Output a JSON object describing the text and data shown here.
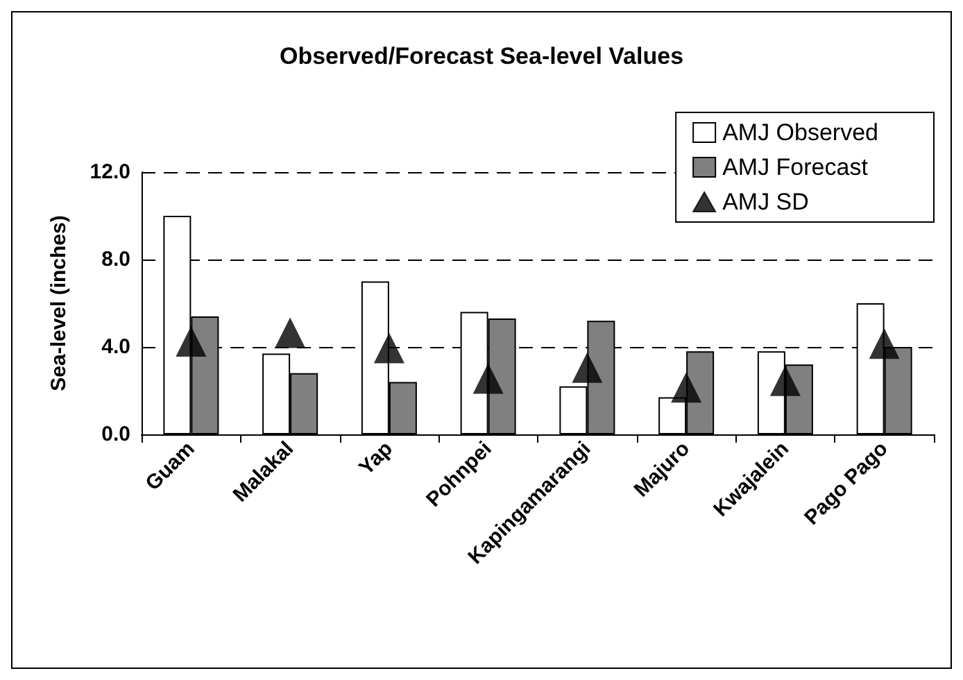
{
  "chart_data": {
    "type": "bar",
    "title": "Observed/Forecast Sea-level Values",
    "ylabel": "Sea-level (inches)",
    "categories": [
      "Guam",
      "Malakal",
      "Yap",
      "Pohnpei",
      "Kapingamarangi",
      "Majuro",
      "Kwajalein",
      "Pago Pago"
    ],
    "series": [
      {
        "name": "AMJ Observed",
        "color": "#ffffff",
        "values": [
          10.0,
          3.7,
          7.0,
          5.6,
          2.2,
          1.7,
          3.8,
          6.0
        ]
      },
      {
        "name": "AMJ Forecast",
        "color": "#808080",
        "values": [
          5.4,
          2.8,
          2.4,
          5.3,
          5.2,
          3.8,
          3.2,
          4.0
        ]
      },
      {
        "name": "AMJ SD",
        "type": "scatter",
        "marker": "triangle",
        "color": "#000000",
        "x": [
          "Guam",
          "Malakal",
          "Yap",
          "Pohnpei",
          "Kapingamarangi",
          "Majuro",
          "Kwajalein",
          "Pago Pago"
        ],
        "values": [
          4.0,
          4.4,
          3.7,
          2.3,
          2.8,
          1.9,
          2.2,
          3.9
        ]
      }
    ],
    "ylim": [
      0,
      12
    ],
    "yticks": [
      {
        "value": 0,
        "label": "0.0"
      },
      {
        "value": 4,
        "label": "4.0"
      },
      {
        "value": 8,
        "label": "8.0"
      },
      {
        "value": 12,
        "label": "12.0"
      }
    ],
    "grid": "y",
    "legend": "top right"
  }
}
